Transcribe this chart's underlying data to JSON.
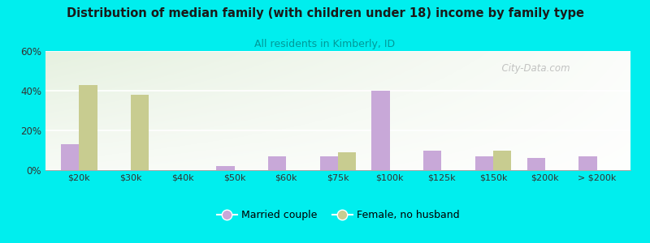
{
  "title": "Distribution of median family (with children under 18) income by family type",
  "subtitle": "All residents in Kimberly, ID",
  "categories": [
    "$20k",
    "$30k",
    "$40k",
    "$50k",
    "$60k",
    "$75k",
    "$100k",
    "$125k",
    "$150k",
    "$200k",
    "> $200k"
  ],
  "married_couple": [
    13,
    0,
    0,
    2,
    7,
    7,
    40,
    10,
    7,
    6,
    7
  ],
  "female_no_husband": [
    43,
    38,
    0,
    0,
    0,
    9,
    0,
    0,
    10,
    0,
    0
  ],
  "married_color": "#c8a8d8",
  "female_color": "#c8cc90",
  "background_color": "#00eeee",
  "title_color": "#1a1a1a",
  "subtitle_color": "#009999",
  "ylim": [
    0,
    60
  ],
  "yticks": [
    0,
    20,
    40,
    60
  ],
  "bar_width": 0.35,
  "watermark": "City-Data.com"
}
